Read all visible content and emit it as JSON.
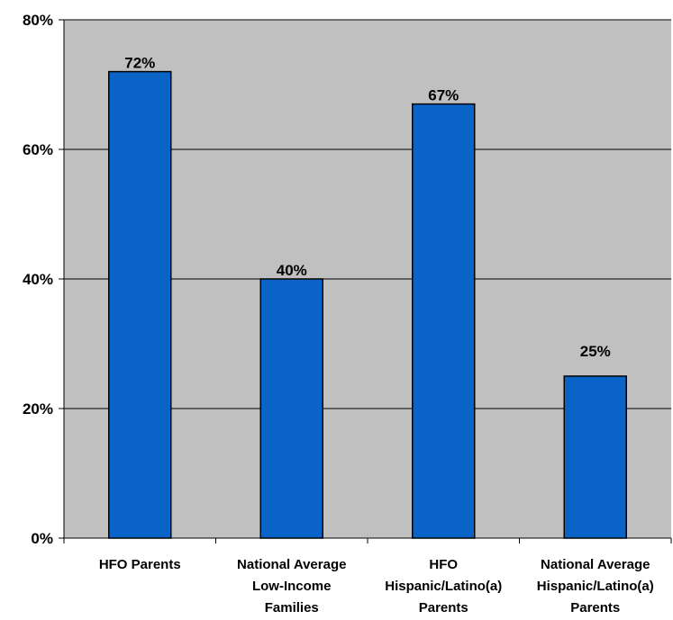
{
  "chart_data": {
    "type": "bar",
    "categories": [
      [
        "HFO Parents"
      ],
      [
        "National Average",
        "Low-Income",
        "Families"
      ],
      [
        "HFO",
        "Hispanic/Latino(a)",
        "Parents"
      ],
      [
        "National Average",
        "Hispanic/Latino(a)",
        "Parents"
      ]
    ],
    "values": [
      72,
      40,
      67,
      25
    ],
    "data_labels": [
      "72%",
      "40%",
      "67%",
      "25%"
    ],
    "title": "",
    "xlabel": "",
    "ylabel": "",
    "ylim": [
      0,
      80
    ],
    "yticks": [
      0,
      20,
      40,
      60,
      80
    ],
    "ytick_labels": [
      "0%",
      "20%",
      "40%",
      "60%",
      "80%"
    ],
    "grid": true,
    "legend": "none",
    "colors": {
      "bar_fill": "#0A64C8",
      "bar_stroke": "#000000",
      "plot_background": "#C0C0C0",
      "gridline": "#000000",
      "axis": "#000000"
    }
  }
}
